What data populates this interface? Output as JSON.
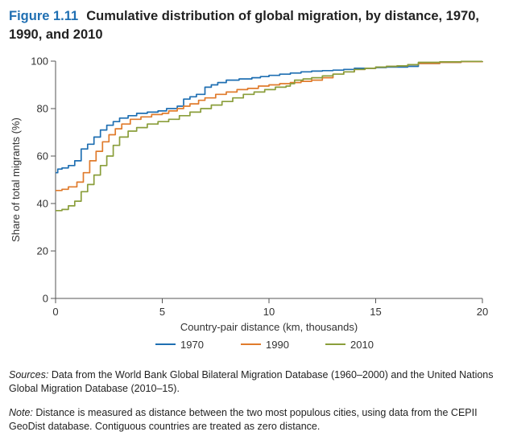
{
  "figure": {
    "number": "Figure 1.11",
    "title": "Cumulative distribution of global migration, by distance, 1970, 1990, and 2010"
  },
  "chart_data": {
    "type": "line",
    "xlabel": "Country-pair distance (km, thousands)",
    "ylabel": "Share of total migrants (%)",
    "xlim": [
      0,
      20
    ],
    "ylim": [
      0,
      100
    ],
    "xticks": [
      0,
      5,
      10,
      15,
      20
    ],
    "yticks": [
      0,
      20,
      40,
      60,
      80,
      100
    ],
    "grid": false,
    "legend_position": "bottom",
    "series": [
      {
        "name": "1970",
        "color": "#1f6fb2",
        "x": [
          0,
          0.1,
          0.3,
          0.6,
          0.9,
          1.2,
          1.5,
          1.8,
          2.1,
          2.4,
          2.7,
          3.0,
          3.4,
          3.8,
          4.3,
          4.8,
          5.2,
          5.7,
          6.0,
          6.3,
          6.6,
          7.0,
          7.3,
          7.6,
          8.0,
          8.6,
          9.2,
          9.6,
          10.0,
          10.5,
          11.0,
          11.5,
          12.0,
          12.5,
          13.0,
          13.5,
          14.0,
          14.5,
          15.0,
          15.5,
          16.0,
          16.5,
          17.0,
          18.0,
          19.0,
          20.0
        ],
        "values": [
          53,
          54.5,
          55,
          56,
          58,
          63,
          65,
          68,
          71,
          73,
          74.5,
          76,
          77,
          78,
          78.5,
          79,
          80,
          81,
          84,
          85,
          86,
          89,
          90,
          91,
          92,
          92.5,
          93,
          93.5,
          94,
          94.5,
          95,
          95.5,
          95.8,
          96,
          96.2,
          96.5,
          97,
          97,
          97.3,
          97.5,
          97.5,
          97.8,
          99,
          99.5,
          99.8,
          100
        ]
      },
      {
        "name": "1990",
        "color": "#e07b2c",
        "x": [
          0,
          0.3,
          0.6,
          1.0,
          1.3,
          1.6,
          1.9,
          2.2,
          2.5,
          2.8,
          3.1,
          3.5,
          4.0,
          4.5,
          5.0,
          5.3,
          5.7,
          6.0,
          6.3,
          6.7,
          7.0,
          7.5,
          8.0,
          8.5,
          9.0,
          9.5,
          10.0,
          10.5,
          11.0,
          11.5,
          12.0,
          12.5,
          13.0,
          13.5,
          14.0,
          14.5,
          15.0,
          15.5,
          16.0,
          16.5,
          17.0,
          18.0,
          19.0,
          20.0
        ],
        "values": [
          45.5,
          46,
          47,
          49,
          53,
          58,
          62,
          66,
          69,
          71.5,
          73.5,
          75.5,
          76.5,
          77.5,
          78,
          79,
          80,
          81,
          82,
          83.5,
          84.5,
          86,
          87,
          88,
          88.5,
          89.5,
          90,
          90.5,
          91,
          91.5,
          92,
          93,
          94.5,
          95.5,
          96.5,
          97,
          97.5,
          97.8,
          98,
          98.5,
          99,
          99.5,
          99.8,
          100
        ]
      },
      {
        "name": "2010",
        "color": "#8a9e3b",
        "x": [
          0,
          0.3,
          0.6,
          0.9,
          1.2,
          1.5,
          1.8,
          2.1,
          2.4,
          2.7,
          3.0,
          3.4,
          3.8,
          4.3,
          4.8,
          5.3,
          5.8,
          6.3,
          6.8,
          7.3,
          7.8,
          8.3,
          8.8,
          9.3,
          9.8,
          10.3,
          10.8,
          11.0,
          11.2,
          11.6,
          12.0,
          12.5,
          13.0,
          13.5,
          14.0,
          14.5,
          15.0,
          15.5,
          16.0,
          16.5,
          17.0,
          18.0,
          19.0,
          20.0
        ],
        "values": [
          37,
          37.5,
          39,
          41,
          45,
          48,
          52,
          56,
          60,
          64.5,
          68,
          70.5,
          72,
          73.5,
          74.5,
          75.5,
          77,
          78.5,
          80,
          81.5,
          83,
          84.5,
          86,
          87,
          88,
          89,
          89.5,
          90.5,
          92,
          92.5,
          93,
          93.8,
          94.5,
          95.5,
          96.5,
          97,
          97.5,
          97.8,
          98,
          98.5,
          99.5,
          99.7,
          99.9,
          100
        ]
      }
    ]
  },
  "notes": {
    "sources_label": "Sources:",
    "sources_text": " Data from the World Bank Global Bilateral Migration Database (1960–2000) and the United Nations Global Migration Database (2010–15).",
    "note_label": "Note:",
    "note_text": " Distance is measured as distance between the two most populous cities, using data from the CEPII GeoDist database. Contiguous countries are treated as zero distance."
  }
}
